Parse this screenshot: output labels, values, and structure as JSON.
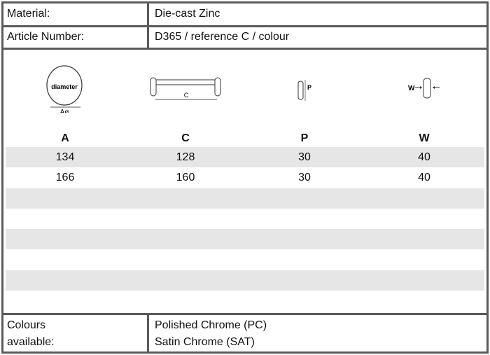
{
  "material": {
    "label": "Material:",
    "value": "Die-cast Zinc"
  },
  "article": {
    "label": "Article Number:",
    "value": "D365 / reference C / colour"
  },
  "diagrams": {
    "a_text": "diameter",
    "a_sub": "Aø",
    "c_text": "C",
    "p_text": "P",
    "w_text": "W"
  },
  "columns": [
    "A",
    "C",
    "P",
    "W"
  ],
  "rows": [
    [
      "134",
      "128",
      "30",
      "40"
    ],
    [
      "166",
      "160",
      "30",
      "40"
    ],
    [
      "",
      "",
      "",
      ""
    ],
    [
      "",
      "",
      "",
      ""
    ],
    [
      "",
      "",
      "",
      ""
    ],
    [
      "",
      "",
      "",
      ""
    ],
    [
      "",
      "",
      "",
      ""
    ],
    [
      "",
      "",
      "",
      ""
    ]
  ],
  "colours": {
    "label_line1": "Colours",
    "label_line2": "available:",
    "options": [
      "Polished Chrome (PC)",
      "Satin Chrome (SAT)"
    ]
  }
}
